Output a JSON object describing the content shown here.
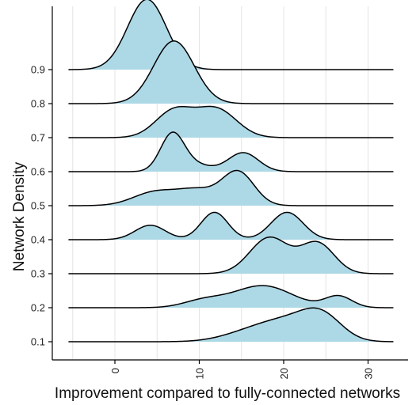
{
  "chart_data": {
    "type": "ridgeline",
    "xlabel": "Improvement compared to fully-connected networks",
    "ylabel": "Network Density",
    "xlim": [
      -6,
      34
    ],
    "x_ticks": [
      0,
      10,
      20,
      30
    ],
    "x_tick_labels": [
      "0",
      "10",
      "20",
      "30"
    ],
    "grid": "vertical",
    "fill_color": "#add8e6",
    "line_color": "#000000",
    "series": [
      {
        "name": "0.1",
        "components": [
          [
            15.8,
            3.2,
            0.22
          ],
          [
            20.5,
            3.2,
            0.48
          ],
          [
            24.5,
            2.4,
            0.62
          ]
        ]
      },
      {
        "name": "0.2",
        "components": [
          [
            10.5,
            2.4,
            0.18
          ],
          [
            17.5,
            3.5,
            0.58
          ],
          [
            26.5,
            1.6,
            0.3
          ]
        ]
      },
      {
        "name": "0.3",
        "components": [
          [
            18.3,
            2.3,
            0.95
          ],
          [
            24,
            2.0,
            0.8
          ]
        ]
      },
      {
        "name": "0.4",
        "components": [
          [
            4.2,
            1.8,
            0.38
          ],
          [
            11.8,
            1.6,
            0.72
          ],
          [
            20.4,
            1.9,
            0.72
          ]
        ]
      },
      {
        "name": "0.5",
        "components": [
          [
            4.8,
            2.6,
            0.36
          ],
          [
            9.8,
            2.3,
            0.38
          ],
          [
            14.6,
            1.9,
            0.88
          ]
        ]
      },
      {
        "name": "0.6",
        "components": [
          [
            6.8,
            1.4,
            0.98
          ],
          [
            9.5,
            1.8,
            0.18
          ],
          [
            15.2,
            1.8,
            0.5
          ]
        ]
      },
      {
        "name": "0.7",
        "components": [
          [
            7.0,
            2.2,
            0.7
          ],
          [
            12.0,
            2.4,
            0.75
          ]
        ]
      },
      {
        "name": "0.8",
        "components": [
          [
            7.0,
            2.4,
            1.65
          ]
        ]
      },
      {
        "name": "0.9",
        "components": [
          [
            3.8,
            2.3,
            1.85
          ]
        ]
      }
    ]
  }
}
